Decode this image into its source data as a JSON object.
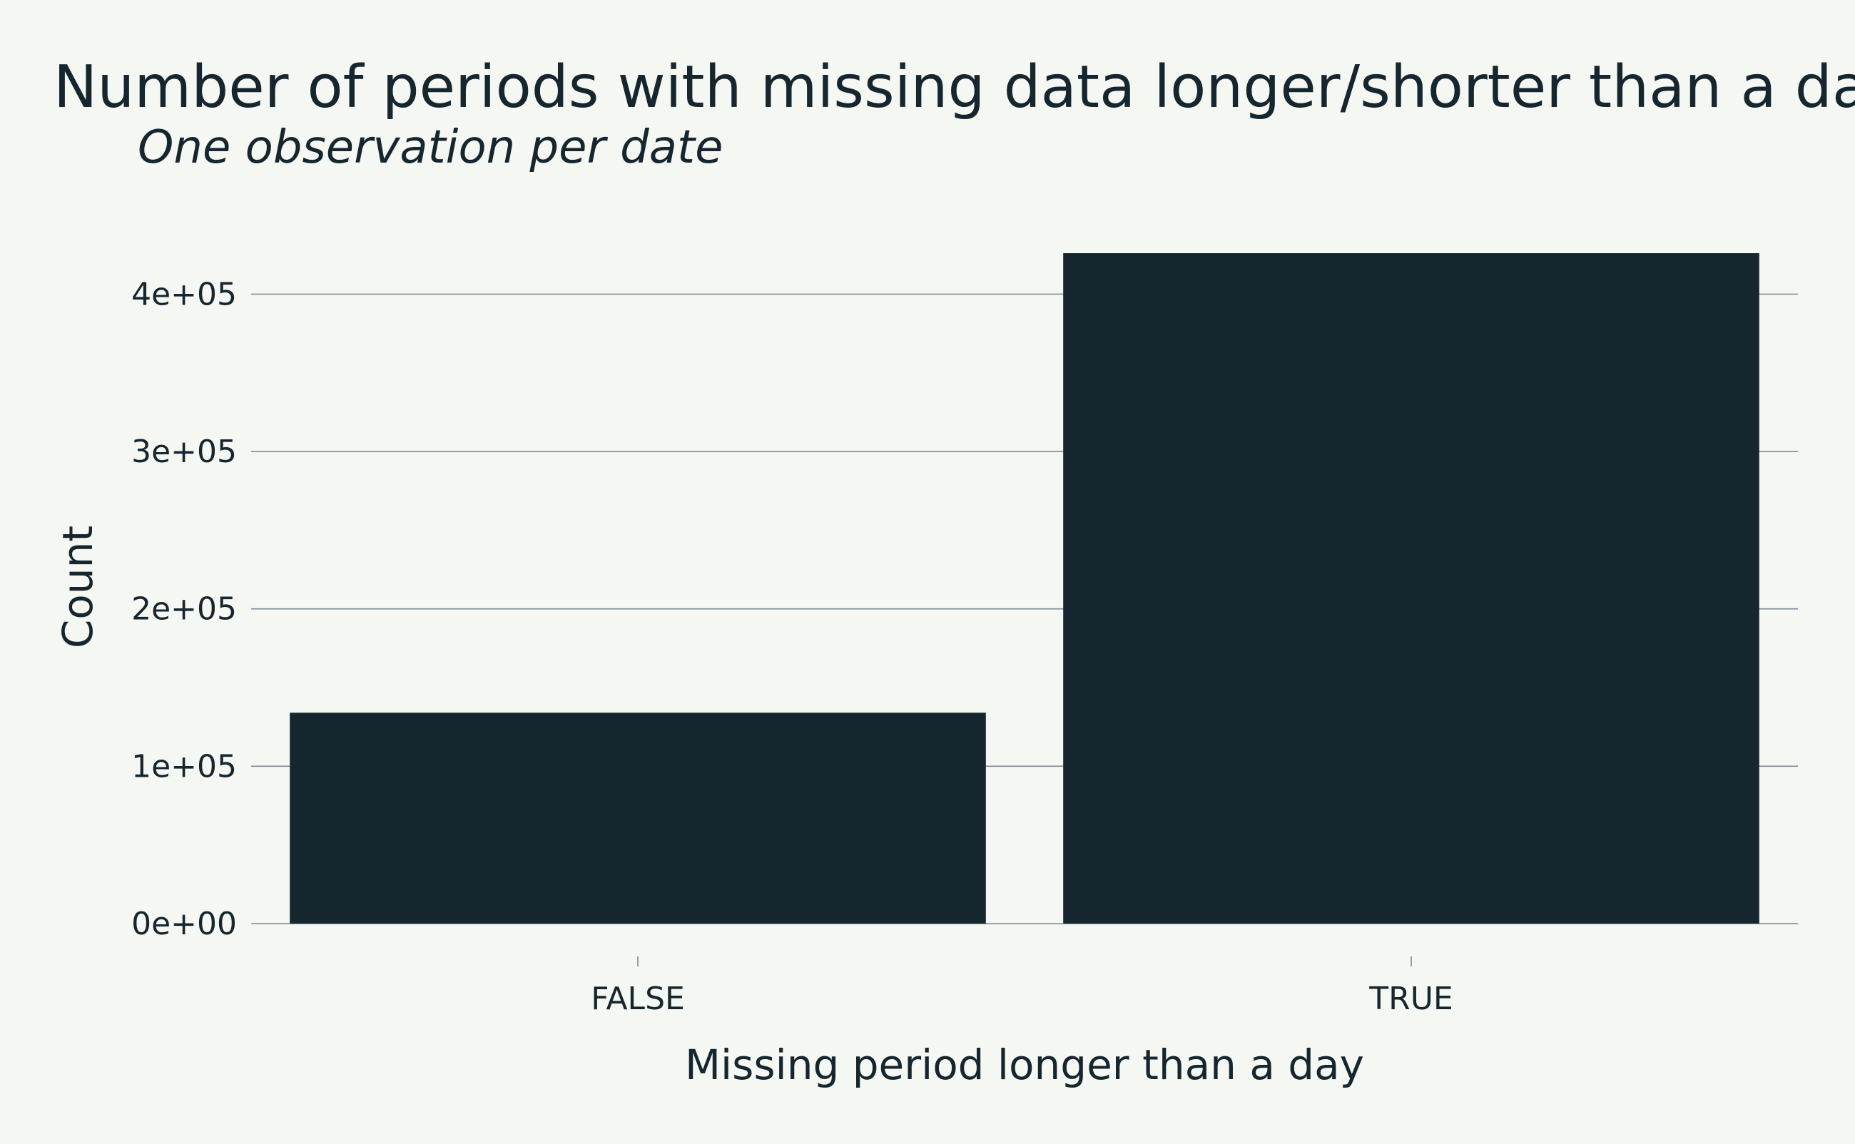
{
  "chart_data": {
    "type": "bar",
    "title": "Number of periods with missing data longer/shorter than a day",
    "subtitle": "One observation per date",
    "xlabel": "Missing period longer than a day",
    "ylabel": "Count",
    "categories": [
      "FALSE",
      "TRUE"
    ],
    "values": [
      134000,
      426000
    ],
    "ylim": [
      0,
      426000
    ],
    "yticks": [
      0,
      100000,
      200000,
      300000,
      400000
    ],
    "ytick_labels": [
      "0e+00",
      "1e+05",
      "2e+05",
      "3e+05",
      "4e+05"
    ],
    "grid": "horizontal",
    "legend": "none",
    "colors": {
      "background": "#f5f7f3",
      "bar": "#16262e",
      "text": "#16262e",
      "gridline": "#7d8893"
    }
  }
}
